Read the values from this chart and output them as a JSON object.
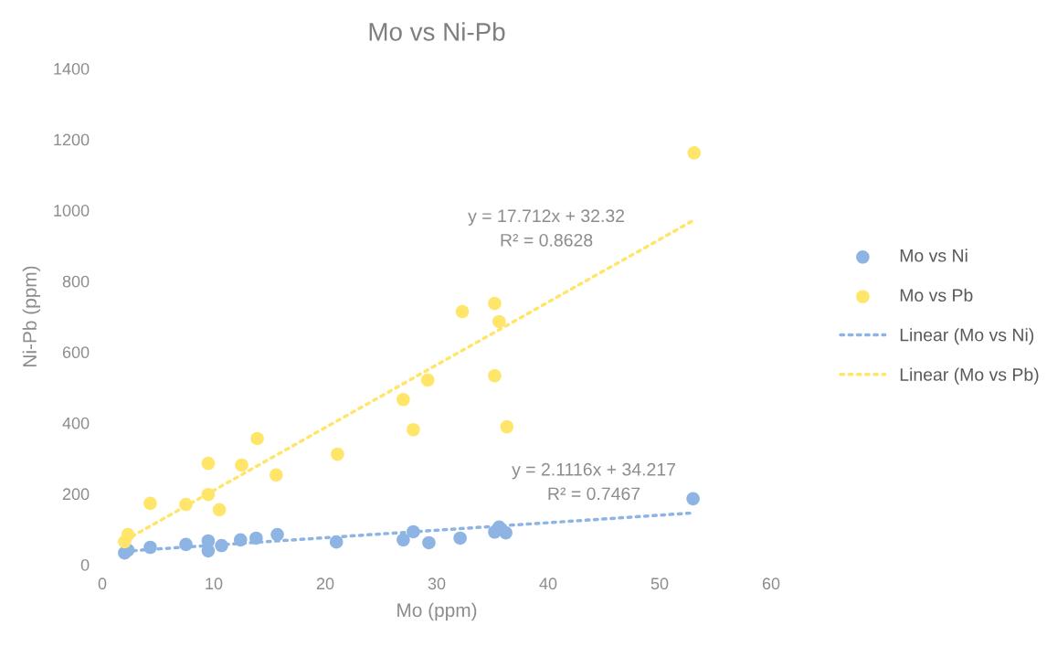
{
  "chart_data": {
    "type": "scatter",
    "title": "Mo vs Ni-Pb",
    "xlabel": "Mo (ppm)",
    "ylabel": "Ni-Pb (ppm)",
    "xlim": [
      0,
      60
    ],
    "xticks": [
      0,
      10,
      20,
      30,
      40,
      50,
      60
    ],
    "ylim": [
      0,
      1400
    ],
    "yticks": [
      0,
      200,
      400,
      600,
      800,
      1000,
      1200,
      1400
    ],
    "grid": false,
    "legend": "right",
    "series": [
      {
        "name": "Mo vs Ni",
        "color": "#8eb4e3",
        "marker": "circle",
        "x": [
          2.0,
          2.3,
          4.3,
          7.5,
          9.5,
          9.5,
          10.7,
          12.4,
          13.8,
          15.7,
          21.0,
          27.0,
          27.9,
          29.3,
          32.1,
          35.2,
          35.6,
          36.2,
          53.0
        ],
        "values": [
          33,
          41,
          49,
          57,
          67,
          39,
          54,
          70,
          75,
          85,
          64,
          70,
          93,
          62,
          75,
          92,
          106,
          90,
          186
        ]
      },
      {
        "name": "Mo vs Pb",
        "color": "#ffe66b",
        "marker": "circle",
        "x": [
          2.0,
          2.3,
          4.3,
          7.5,
          9.5,
          9.5,
          10.5,
          12.5,
          13.9,
          15.6,
          21.1,
          27.0,
          27.9,
          29.2,
          32.3,
          35.2,
          35.2,
          35.6,
          36.3,
          53.1
        ],
        "values": [
          65,
          85,
          173,
          170,
          198,
          286,
          155,
          281,
          356,
          253,
          312,
          466,
          381,
          521,
          714,
          737,
          533,
          686,
          389,
          1162
        ]
      },
      {
        "name": "Linear (Mo vs Ni)",
        "color": "#8eb4e3",
        "type": "line",
        "marker": "none",
        "line_style": "dotted",
        "x": [
          2.0,
          53.0
        ],
        "values": [
          38,
          146
        ]
      },
      {
        "name": "Linear (Mo vs Pb)",
        "color": "#ffe66b",
        "type": "line",
        "marker": "none",
        "line_style": "dotted",
        "x": [
          2.0,
          53.0
        ],
        "values": [
          68,
          971
        ]
      }
    ],
    "annotations": [
      "y = 17.712x + 32.32",
      "R² = 0.8628",
      "y = 2.1116x + 34.217",
      "R² = 0.7467"
    ]
  }
}
